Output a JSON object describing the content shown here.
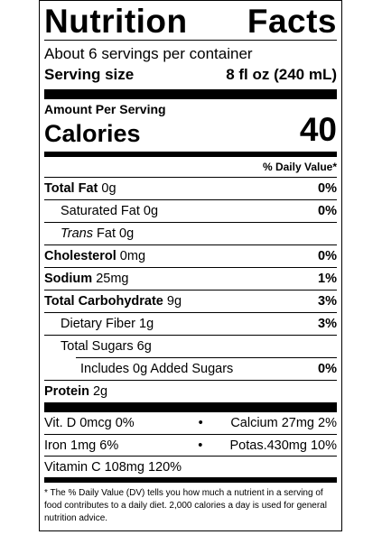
{
  "label": {
    "title_left": "Nutrition",
    "title_right": "Facts",
    "servings_per_container": "About 6 servings per container",
    "serving_size_label": "Serving size",
    "serving_size_value": "8 fl oz (240 mL)",
    "amount_per_serving": "Amount Per Serving",
    "calories_label": "Calories",
    "calories_value": "40",
    "daily_value_header": "% Daily Value*",
    "nutrients": [
      {
        "name": "Total Fat",
        "amount": "0g",
        "dv": "0%"
      },
      {
        "name": "Saturated Fat",
        "amount": "0g",
        "dv": "0%"
      },
      {
        "name_italic": "Trans",
        "name": "Fat",
        "amount": "0g",
        "dv": ""
      },
      {
        "name": "Cholesterol",
        "amount": "0mg",
        "dv": "0%"
      },
      {
        "name": "Sodium",
        "amount": "25mg",
        "dv": "1%"
      },
      {
        "name": "Total Carbohydrate",
        "amount": "9g",
        "dv": "3%"
      },
      {
        "name": "Dietary Fiber",
        "amount": "1g",
        "dv": "3%"
      },
      {
        "name": "Total Sugars",
        "amount": "6g",
        "dv": ""
      },
      {
        "name": "Includes 0g Added Sugars",
        "amount": "",
        "dv": "0%"
      },
      {
        "name": "Protein",
        "amount": "2g",
        "dv": ""
      }
    ],
    "vitamins": [
      {
        "left": "Vit. D 0mcg 0%",
        "dot": "•",
        "right": "Calcium 27mg 2%"
      },
      {
        "left": "Iron 1mg 6%",
        "dot": "•",
        "right": "Potas.430mg 10%"
      },
      {
        "left": "Vitamin C 108mg 120%",
        "dot": "",
        "right": ""
      }
    ],
    "footnote": "* The % Daily Value (DV) tells you how much a nutrient in a serving of food contributes to a daily diet. 2,000 calories a day is used for general nutrition advice."
  }
}
